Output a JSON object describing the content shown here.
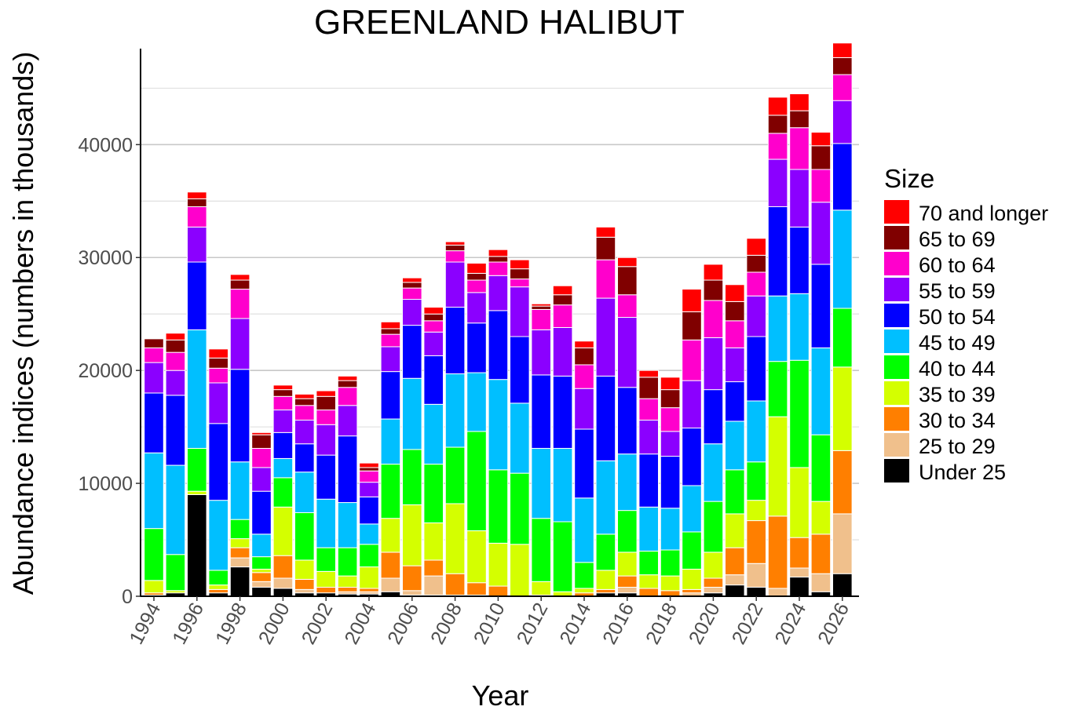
{
  "chart_data": {
    "type": "bar",
    "stacked": true,
    "title": "GREENLAND HALIBUT",
    "xlabel": "Year",
    "ylabel": "Abundance indices (numbers in thousands)",
    "ylim": [
      0,
      48500
    ],
    "yticks": [
      0,
      10000,
      20000,
      30000,
      40000
    ],
    "xticks": [
      "1994",
      "1996",
      "1998",
      "2000",
      "2002",
      "2004",
      "2006",
      "2008",
      "2010",
      "2012",
      "2014",
      "2016",
      "2018",
      "2020",
      "2022",
      "2024",
      "2026"
    ],
    "grid": "horizontal major and minor",
    "legend": {
      "title": "Size",
      "position": "right"
    },
    "categories": [
      "1994",
      "1995",
      "1996",
      "1997",
      "1998",
      "1999",
      "2000",
      "2001",
      "2002",
      "2003",
      "2004",
      "2005",
      "2006",
      "2007",
      "2008",
      "2009",
      "2010",
      "2011",
      "2012",
      "2013",
      "2014",
      "2015",
      "2016",
      "2017",
      "2018",
      "2019",
      "2020",
      "2021",
      "2022",
      "2023",
      "2024",
      "2025",
      "2026"
    ],
    "series": [
      {
        "name": "Under 25",
        "color": "#000000",
        "values": [
          100,
          300,
          9000,
          300,
          2600,
          800,
          700,
          300,
          300,
          200,
          200,
          400,
          100,
          100,
          100,
          100,
          0,
          0,
          100,
          0,
          0,
          300,
          300,
          0,
          0,
          0,
          300,
          1000,
          800,
          0,
          1700,
          400,
          2000
        ]
      },
      {
        "name": "25 to 29",
        "color": "#F0C08C",
        "values": [
          0,
          0,
          0,
          0,
          800,
          500,
          900,
          300,
          0,
          200,
          200,
          1200,
          400,
          1700,
          0,
          0,
          0,
          0,
          0,
          0,
          0,
          0,
          500,
          0,
          0,
          300,
          500,
          900,
          2100,
          700,
          800,
          1600,
          5300
        ]
      },
      {
        "name": "30 to 34",
        "color": "#FF7F00",
        "values": [
          200,
          0,
          0,
          300,
          900,
          800,
          2000,
          900,
          500,
          400,
          300,
          2300,
          2200,
          1400,
          1900,
          1100,
          900,
          0,
          0,
          0,
          300,
          300,
          1000,
          700,
          500,
          300,
          800,
          2400,
          3800,
          6400,
          2700,
          3500,
          5600
        ]
      },
      {
        "name": "35 to 39",
        "color": "#D4FF00",
        "values": [
          1100,
          200,
          300,
          400,
          800,
          300,
          4300,
          1700,
          1400,
          1000,
          1900,
          3000,
          5400,
          3300,
          6200,
          4600,
          3800,
          4600,
          1200,
          400,
          400,
          1700,
          2100,
          1200,
          1300,
          1800,
          2300,
          3000,
          1800,
          8800,
          6200,
          2900,
          7400
        ]
      },
      {
        "name": "40 to 44",
        "color": "#00FF00",
        "values": [
          4600,
          3200,
          3800,
          1300,
          1700,
          1100,
          2600,
          4200,
          2100,
          2500,
          2000,
          4800,
          4900,
          5200,
          5000,
          8800,
          6500,
          6300,
          5600,
          6200,
          2300,
          3200,
          3700,
          2100,
          2300,
          3300,
          4500,
          3900,
          3400,
          4900,
          9500,
          5900,
          5200
        ]
      },
      {
        "name": "45 to 49",
        "color": "#00BFFF",
        "values": [
          6700,
          7900,
          10500,
          6200,
          5100,
          2000,
          1700,
          3600,
          4300,
          4000,
          1800,
          4000,
          6300,
          5300,
          6500,
          5200,
          8000,
          6200,
          6200,
          6500,
          5700,
          6500,
          5000,
          3900,
          3700,
          4100,
          5100,
          4300,
          5400,
          5800,
          5900,
          7700,
          8700
        ]
      },
      {
        "name": "50 to 54",
        "color": "#0000FF",
        "values": [
          5300,
          6200,
          6000,
          6800,
          8200,
          3800,
          2300,
          2500,
          3900,
          5900,
          2400,
          4200,
          4700,
          4300,
          5900,
          4400,
          6100,
          5900,
          6500,
          6400,
          6100,
          7500,
          5900,
          4700,
          4600,
          5100,
          4800,
          3500,
          5700,
          7900,
          5900,
          7400,
          5900
        ]
      },
      {
        "name": "55 to 59",
        "color": "#8B00FF",
        "values": [
          2700,
          2200,
          3100,
          3600,
          4500,
          2100,
          2000,
          2100,
          2700,
          2700,
          1300,
          2200,
          2300,
          2100,
          4000,
          2700,
          3100,
          4400,
          4000,
          4300,
          3600,
          6900,
          6200,
          3000,
          2200,
          4200,
          4600,
          3000,
          3600,
          4200,
          5100,
          5500,
          3800
        ]
      },
      {
        "name": "60 to 64",
        "color": "#FF00CC",
        "values": [
          1300,
          1600,
          1800,
          1300,
          2600,
          1700,
          1200,
          1300,
          1300,
          1600,
          1000,
          1100,
          1000,
          1000,
          1000,
          1100,
          1200,
          700,
          1800,
          2000,
          2100,
          3400,
          2000,
          1900,
          2100,
          3600,
          3300,
          2400,
          2100,
          2300,
          3700,
          2900,
          2300
        ]
      },
      {
        "name": "65 to 69",
        "color": "#800000",
        "values": [
          800,
          1100,
          700,
          900,
          800,
          1200,
          600,
          600,
          1200,
          600,
          300,
          500,
          500,
          600,
          500,
          600,
          500,
          900,
          300,
          900,
          1500,
          2000,
          2500,
          1900,
          1600,
          2500,
          1800,
          1700,
          1500,
          1600,
          1500,
          2100,
          1500
        ]
      },
      {
        "name": "70 and longer",
        "color": "#FF0000",
        "values": [
          0,
          600,
          600,
          800,
          500,
          200,
          400,
          400,
          500,
          400,
          400,
          600,
          400,
          600,
          300,
          900,
          600,
          800,
          200,
          800,
          600,
          900,
          800,
          600,
          1100,
          2000,
          1400,
          1500,
          1500,
          1600,
          1500,
          1200,
          1300
        ]
      }
    ]
  }
}
